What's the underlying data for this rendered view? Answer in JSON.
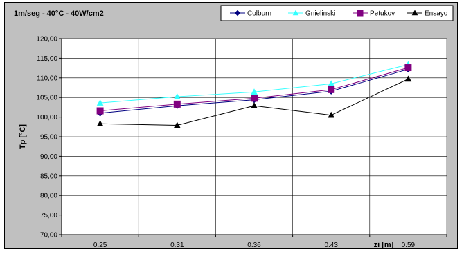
{
  "chart_data": {
    "type": "line",
    "title": "1m/seg - 40°C - 40W/cm2",
    "xlabel": "zi [m]",
    "ylabel": "Tp [°C]",
    "categories": [
      "0.25",
      "0.31",
      "0.36",
      "0.43",
      "0.59"
    ],
    "ylim": [
      70,
      120
    ],
    "ytick_step": 5,
    "yticks": [
      "70,00",
      "75,00",
      "80,00",
      "85,00",
      "90,00",
      "95,00",
      "100,00",
      "105,00",
      "110,00",
      "115,00",
      "120,00"
    ],
    "grid": true,
    "legend_position": "top-right",
    "series": [
      {
        "name": "Colburn",
        "color": "#000080",
        "marker": "diamond",
        "values": [
          101.0,
          102.9,
          104.4,
          106.6,
          112.2
        ]
      },
      {
        "name": "Gnielinski",
        "color": "#33ffff",
        "marker": "triangle",
        "values": [
          103.6,
          105.2,
          106.4,
          108.5,
          113.4
        ]
      },
      {
        "name": "Petukov",
        "color": "#800080",
        "marker": "square",
        "values": [
          101.6,
          103.3,
          104.8,
          107.0,
          112.6
        ]
      },
      {
        "name": "Ensayo",
        "color": "#000000",
        "marker": "triangle",
        "values": [
          98.3,
          97.9,
          102.9,
          100.5,
          109.7
        ]
      }
    ]
  }
}
